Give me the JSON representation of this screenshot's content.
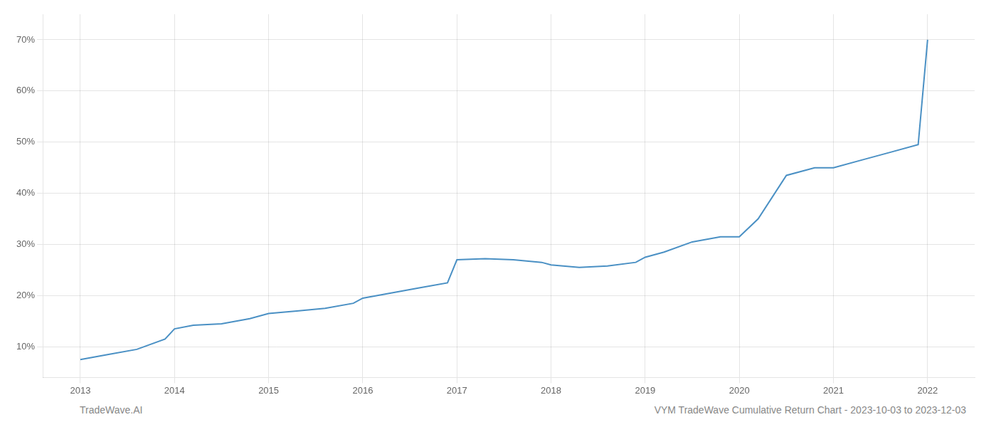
{
  "chart_data": {
    "type": "line",
    "x": [
      2013.0,
      2013.3,
      2013.6,
      2013.9,
      2014.0,
      2014.2,
      2014.5,
      2014.8,
      2015.0,
      2015.3,
      2015.6,
      2015.9,
      2016.0,
      2016.3,
      2016.6,
      2016.9,
      2017.0,
      2017.3,
      2017.6,
      2017.9,
      2018.0,
      2018.3,
      2018.6,
      2018.9,
      2019.0,
      2019.2,
      2019.5,
      2019.8,
      2020.0,
      2020.2,
      2020.5,
      2020.8,
      2021.0,
      2021.3,
      2021.6,
      2021.9,
      2022.0
    ],
    "values": [
      7.5,
      8.5,
      9.5,
      11.5,
      13.5,
      14.2,
      14.5,
      15.5,
      16.5,
      17.0,
      17.5,
      18.5,
      19.5,
      20.5,
      21.5,
      22.5,
      27.0,
      27.2,
      27.0,
      26.5,
      26.0,
      25.5,
      25.8,
      26.5,
      27.5,
      28.5,
      30.5,
      31.5,
      31.5,
      35.0,
      43.5,
      45.0,
      45.0,
      46.5,
      48.0,
      49.5,
      70.0
    ],
    "color": "#4a90c4",
    "xlim": [
      2012.6,
      2022.5
    ],
    "xticks": [
      2013,
      2014,
      2015,
      2016,
      2017,
      2018,
      2019,
      2020,
      2021,
      2022
    ],
    "ylim": [
      4,
      75
    ],
    "yticks": [
      {
        "value": 10,
        "label": "10%"
      },
      {
        "value": 20,
        "label": "20%"
      },
      {
        "value": 30,
        "label": "30%"
      },
      {
        "value": 40,
        "label": "40%"
      },
      {
        "value": 50,
        "label": "50%"
      },
      {
        "value": 60,
        "label": "60%"
      },
      {
        "value": 70,
        "label": "70%"
      }
    ],
    "grid": true,
    "annotations": [
      "TradeWave.AI",
      "VYM TradeWave Cumulative Return Chart - 2023-10-03 to 2023-12-03"
    ]
  }
}
